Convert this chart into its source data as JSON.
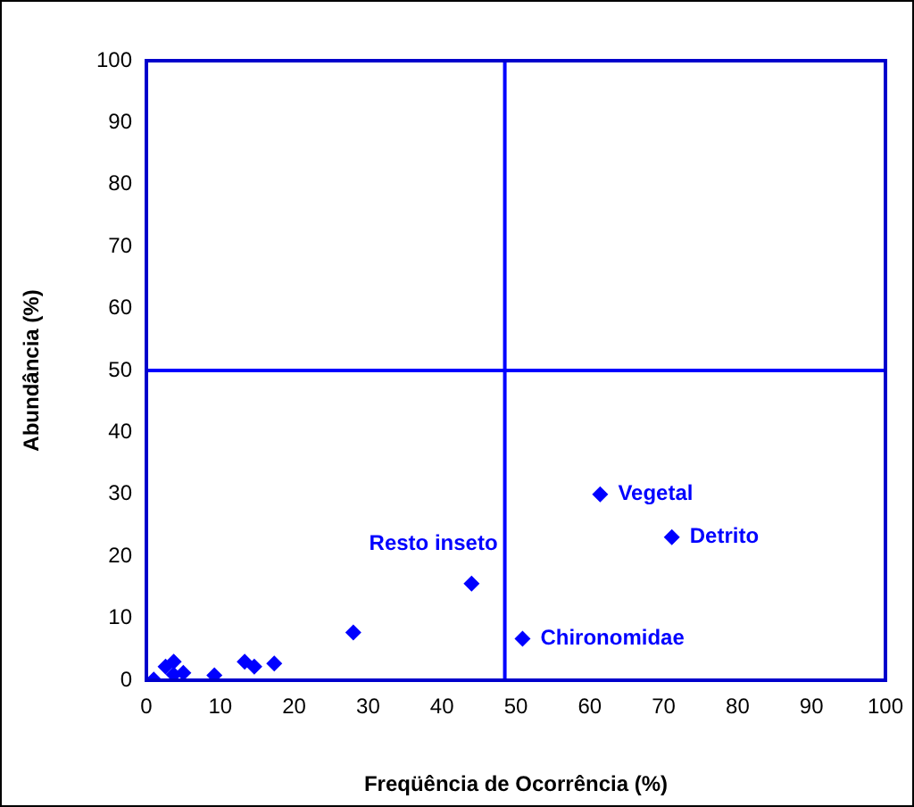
{
  "chart_data": {
    "type": "scatter",
    "xlabel": "Freqüência de Ocorrência (%)",
    "ylabel": "Abundância (%)",
    "x": [
      1,
      2.6,
      3.7,
      3.7,
      5,
      9.2,
      13.3,
      14.6,
      17.3,
      28,
      44,
      50.9,
      61.4,
      71.1
    ],
    "series": [
      {
        "color": "#0000ff",
        "values": [
          0.1,
          2.2,
          3,
          0.9,
          1.2,
          0.8,
          3,
          2.2,
          2.7,
          7.7,
          15.6,
          6.7,
          30,
          23.1
        ]
      }
    ],
    "marker": "diamond",
    "xlim": [
      0,
      100
    ],
    "ylim": [
      0,
      100
    ],
    "xticks": [
      0,
      10,
      20,
      30,
      40,
      50,
      60,
      70,
      80,
      90,
      100
    ],
    "yticks": [
      0,
      10,
      20,
      30,
      40,
      50,
      60,
      70,
      80,
      90,
      100
    ],
    "ref_lines": [
      {
        "axis": "x",
        "value": 48.5,
        "color": "#0000ff"
      },
      {
        "axis": "y",
        "value": 50,
        "color": "#0000ff"
      }
    ],
    "annotations": [
      {
        "text": "Resto inseto",
        "x": 44,
        "y": 15.6
      },
      {
        "text": "Chironomidae",
        "x": 50.9,
        "y": 6.7
      },
      {
        "text": "Vegetal",
        "x": 61.4,
        "y": 30
      },
      {
        "text": "Detrito",
        "x": 71.1,
        "y": 23.1
      }
    ]
  }
}
